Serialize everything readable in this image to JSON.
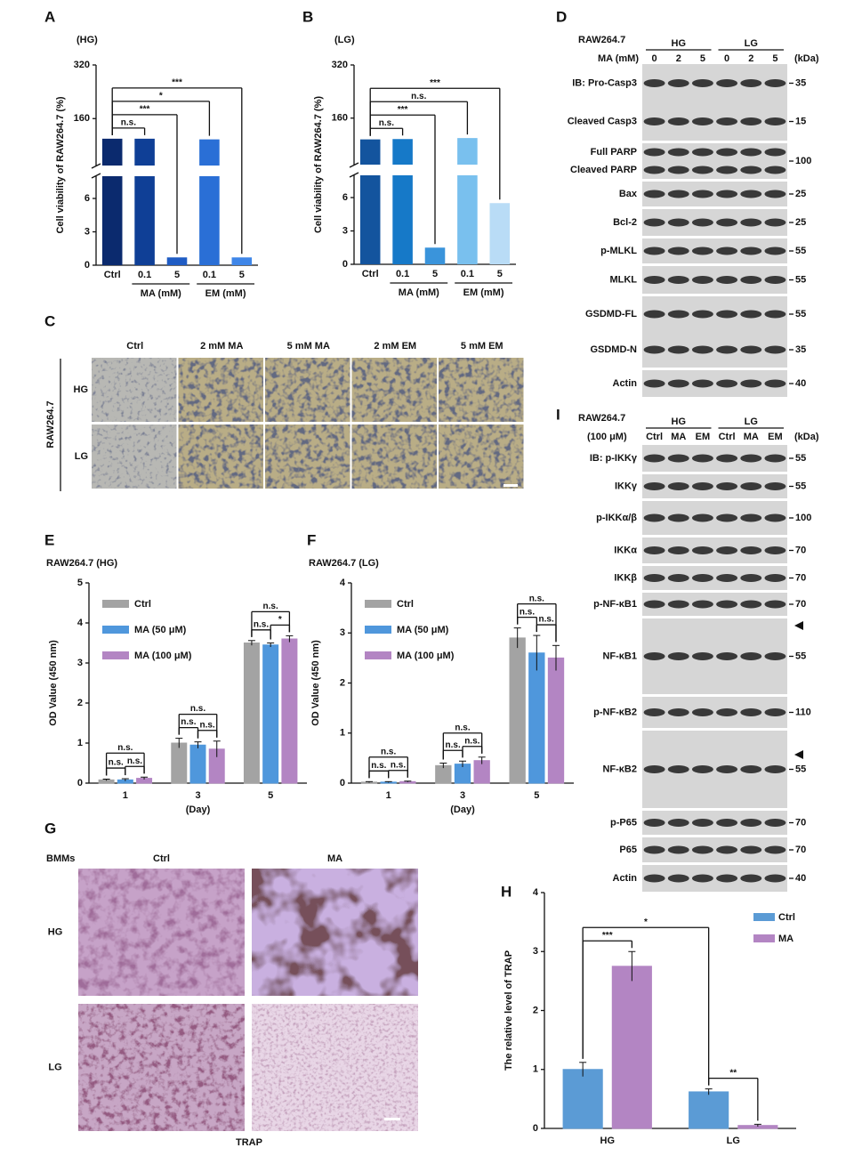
{
  "chart_data": [
    {
      "panel": "A",
      "type": "bar",
      "subtitle": "(HG)",
      "y_label": "Cell viability of RAW264.7 (%)",
      "categories": [
        "Ctrl",
        "0.1",
        "5",
        "0.1",
        "5"
      ],
      "groups": [
        {
          "label": "MA (mM)",
          "span": [
            1,
            2
          ]
        },
        {
          "label": "EM (mM)",
          "span": [
            3,
            4
          ]
        }
      ],
      "values": [
        100,
        100,
        0.7,
        98,
        0.7
      ],
      "colors": [
        "#0b2a6e",
        "#0f3f96",
        "#1f5cc4",
        "#2a6fd6",
        "#3f86e8"
      ],
      "ylim": [
        0,
        320
      ],
      "axis_break": [
        8,
        20
      ],
      "yticks": [
        0,
        3,
        6,
        160,
        320
      ],
      "comparisons": [
        {
          "label": "n.s.",
          "pair": [
            0,
            1
          ]
        },
        {
          "label": "***",
          "pair": [
            0,
            2
          ]
        },
        {
          "label": "*",
          "pair": [
            0,
            3
          ]
        },
        {
          "label": "***",
          "pair": [
            0,
            4
          ]
        }
      ]
    },
    {
      "panel": "B",
      "type": "bar",
      "subtitle": "(LG)",
      "y_label": "Cell viability of RAW264.7 (%)",
      "categories": [
        "Ctrl",
        "0.1",
        "5",
        "0.1",
        "5"
      ],
      "groups": [
        {
          "label": "MA (mM)",
          "span": [
            1,
            2
          ]
        },
        {
          "label": "EM (mM)",
          "span": [
            3,
            4
          ]
        }
      ],
      "values": [
        96,
        97,
        1.5,
        100,
        5.5
      ],
      "colors": [
        "#13549e",
        "#1679c8",
        "#3a94db",
        "#79c0ee",
        "#b9dcf6"
      ],
      "ylim": [
        0,
        320
      ],
      "axis_break": [
        8,
        20
      ],
      "yticks": [
        0,
        3,
        6,
        160,
        320
      ],
      "comparisons": [
        {
          "label": "n.s.",
          "pair": [
            0,
            1
          ]
        },
        {
          "label": "***",
          "pair": [
            0,
            2
          ]
        },
        {
          "label": "n.s.",
          "pair": [
            0,
            3
          ]
        },
        {
          "label": "***",
          "pair": [
            0,
            4
          ]
        }
      ]
    },
    {
      "panel": "E",
      "type": "grouped_bar",
      "title": "RAW264.7 (HG)",
      "y_label": "OD Value (450 nm)",
      "x_label": "(Day)",
      "categories": [
        "1",
        "3",
        "5"
      ],
      "series": [
        {
          "name": "Ctrl",
          "color": "#a3a3a3",
          "values": [
            0.08,
            1.0,
            3.5
          ],
          "errors": [
            0.02,
            0.12,
            0.06
          ]
        },
        {
          "name": "MA (50 μM)",
          "color": "#4f97dc",
          "values": [
            0.08,
            0.95,
            3.45
          ],
          "errors": [
            0.03,
            0.08,
            0.05
          ]
        },
        {
          "name": "MA (100 μM)",
          "color": "#b385c3",
          "values": [
            0.12,
            0.85,
            3.6
          ],
          "errors": [
            0.03,
            0.2,
            0.08
          ]
        }
      ],
      "ylim": [
        0,
        5
      ],
      "yticks": [
        0,
        1,
        2,
        3,
        4,
        5
      ],
      "legend": "upper left",
      "comparisons": [
        {
          "label": "n.s.",
          "pair": [
            [
              0,
              0
            ],
            [
              0,
              2
            ]
          ]
        },
        {
          "label": "n.s.",
          "pair": [
            [
              0,
              0
            ],
            [
              0,
              1
            ]
          ]
        },
        {
          "label": "n.s.",
          "pair": [
            [
              0,
              1
            ],
            [
              0,
              2
            ]
          ]
        },
        {
          "label": "n.s.",
          "pair": [
            [
              1,
              0
            ],
            [
              1,
              2
            ]
          ]
        },
        {
          "label": "n.s.",
          "pair": [
            [
              1,
              0
            ],
            [
              1,
              1
            ]
          ]
        },
        {
          "label": "n.s.",
          "pair": [
            [
              1,
              1
            ],
            [
              1,
              2
            ]
          ]
        },
        {
          "label": "n.s.",
          "pair": [
            [
              2,
              0
            ],
            [
              2,
              2
            ]
          ]
        },
        {
          "label": "n.s.",
          "pair": [
            [
              2,
              0
            ],
            [
              2,
              1
            ]
          ]
        },
        {
          "label": "*",
          "pair": [
            [
              2,
              1
            ],
            [
              2,
              2
            ]
          ]
        }
      ]
    },
    {
      "panel": "F",
      "type": "grouped_bar",
      "title": "RAW264.7 (LG)",
      "y_label": "OD Value (450 nm)",
      "x_label": "(Day)",
      "categories": [
        "1",
        "3",
        "5"
      ],
      "series": [
        {
          "name": "Ctrl",
          "color": "#a3a3a3",
          "values": [
            0.02,
            0.35,
            2.9
          ],
          "errors": [
            0.01,
            0.05,
            0.2
          ]
        },
        {
          "name": "MA (50 μM)",
          "color": "#4f97dc",
          "values": [
            0.02,
            0.38,
            2.6
          ],
          "errors": [
            0.01,
            0.06,
            0.35
          ]
        },
        {
          "name": "MA (100 μM)",
          "color": "#b385c3",
          "values": [
            0.03,
            0.45,
            2.5
          ],
          "errors": [
            0.01,
            0.07,
            0.25
          ]
        }
      ],
      "ylim": [
        0,
        4
      ],
      "yticks": [
        0,
        1,
        2,
        3,
        4
      ],
      "legend": "upper left",
      "comparisons": [
        {
          "label": "n.s.",
          "pair": [
            [
              0,
              0
            ],
            [
              0,
              2
            ]
          ]
        },
        {
          "label": "n.s.",
          "pair": [
            [
              0,
              0
            ],
            [
              0,
              1
            ]
          ]
        },
        {
          "label": "n.s.",
          "pair": [
            [
              0,
              1
            ],
            [
              0,
              2
            ]
          ]
        },
        {
          "label": "n.s.",
          "pair": [
            [
              1,
              0
            ],
            [
              1,
              2
            ]
          ]
        },
        {
          "label": "n.s.",
          "pair": [
            [
              1,
              0
            ],
            [
              1,
              1
            ]
          ]
        },
        {
          "label": "n.s.",
          "pair": [
            [
              1,
              1
            ],
            [
              1,
              2
            ]
          ]
        },
        {
          "label": "n.s.",
          "pair": [
            [
              2,
              0
            ],
            [
              2,
              2
            ]
          ]
        },
        {
          "label": "n.s.",
          "pair": [
            [
              2,
              0
            ],
            [
              2,
              1
            ]
          ]
        },
        {
          "label": "n.s.",
          "pair": [
            [
              2,
              1
            ],
            [
              2,
              2
            ]
          ]
        }
      ]
    },
    {
      "panel": "H",
      "type": "grouped_bar",
      "y_label": "The relative level of TRAP",
      "categories": [
        "HG",
        "LG"
      ],
      "series": [
        {
          "name": "Ctrl",
          "color": "#5b9bd5",
          "values": [
            1.0,
            0.62
          ],
          "errors": [
            0.12,
            0.05
          ]
        },
        {
          "name": "MA",
          "color": "#b385c3",
          "values": [
            2.75,
            0.05
          ],
          "errors": [
            0.25,
            0.02
          ]
        }
      ],
      "ylim": [
        0,
        4
      ],
      "yticks": [
        0,
        1,
        2,
        3,
        4
      ],
      "legend": "upper right",
      "comparisons": [
        {
          "label": "***",
          "pair": [
            [
              0,
              0
            ],
            [
              0,
              1
            ]
          ]
        },
        {
          "label": "*",
          "pair": [
            [
              0,
              0
            ],
            [
              1,
              0
            ]
          ]
        },
        {
          "label": "**",
          "pair": [
            [
              1,
              0
            ],
            [
              1,
              1
            ]
          ]
        }
      ]
    }
  ],
  "panel_c": {
    "panel": "C",
    "columns": [
      "Ctrl",
      "2 mM MA",
      "5 mM MA",
      "2 mM EM",
      "5 mM EM"
    ],
    "rows": [
      "HG",
      "LG"
    ],
    "cell_line": "RAW264.7"
  },
  "panel_g": {
    "panel": "G",
    "corner": "BMMs",
    "columns": [
      "Ctrl",
      "MA"
    ],
    "rows": [
      "HG",
      "LG"
    ],
    "stain": "TRAP"
  },
  "panel_d": {
    "panel": "D",
    "cell_line": "RAW264.7",
    "treatment": "MA (mM)",
    "groups": [
      "HG",
      "LG"
    ],
    "lanes": [
      "0",
      "2",
      "5",
      "0",
      "2",
      "5"
    ],
    "unit": "(kDa)",
    "blots": [
      {
        "labels": [
          "IB: Pro-Casp3",
          "Cleaved Casp3"
        ],
        "kda": [
          35,
          15
        ]
      },
      {
        "labels": [
          "Full PARP",
          "Cleaved PARP"
        ],
        "kda": [
          100
        ]
      },
      {
        "labels": [
          "Bax"
        ],
        "kda": [
          25
        ]
      },
      {
        "labels": [
          "Bcl-2"
        ],
        "kda": [
          25
        ]
      },
      {
        "labels": [
          "p-MLKL"
        ],
        "kda": [
          55
        ]
      },
      {
        "labels": [
          "MLKL"
        ],
        "kda": [
          55
        ]
      },
      {
        "labels": [
          "GSDMD-FL",
          "GSDMD-N"
        ],
        "kda": [
          55,
          35
        ]
      },
      {
        "labels": [
          "Actin"
        ],
        "kda": [
          40
        ]
      }
    ]
  },
  "panel_i": {
    "panel": "I",
    "cell_line": "RAW264.7",
    "treatment": "(100 μM)",
    "groups": [
      "HG",
      "LG"
    ],
    "lanes": [
      "Ctrl",
      "MA",
      "EM",
      "Ctrl",
      "MA",
      "EM"
    ],
    "unit": "(kDa)",
    "blots": [
      {
        "labels": [
          "IB: p-IKKγ"
        ],
        "kda": [
          55
        ]
      },
      {
        "labels": [
          "IKKγ"
        ],
        "kda": [
          55
        ]
      },
      {
        "labels": [
          "p-IKKα/β"
        ],
        "kda": [
          100
        ]
      },
      {
        "labels": [
          "IKKα"
        ],
        "kda": [
          70
        ]
      },
      {
        "labels": [
          "IKKβ"
        ],
        "kda": [
          70
        ]
      },
      {
        "labels": [
          "p-NF-κB1"
        ],
        "kda": [
          70
        ]
      },
      {
        "labels": [
          "NF-κB1"
        ],
        "kda": [
          55
        ]
      },
      {
        "labels": [
          "p-NF-κB2"
        ],
        "kda": [
          110
        ]
      },
      {
        "labels": [
          "NF-κB2"
        ],
        "kda": [
          55
        ]
      },
      {
        "labels": [
          "p-P65"
        ],
        "kda": [
          70
        ]
      },
      {
        "labels": [
          "P65"
        ],
        "kda": [
          70
        ]
      },
      {
        "labels": [
          "Actin"
        ],
        "kda": [
          40
        ]
      }
    ]
  }
}
